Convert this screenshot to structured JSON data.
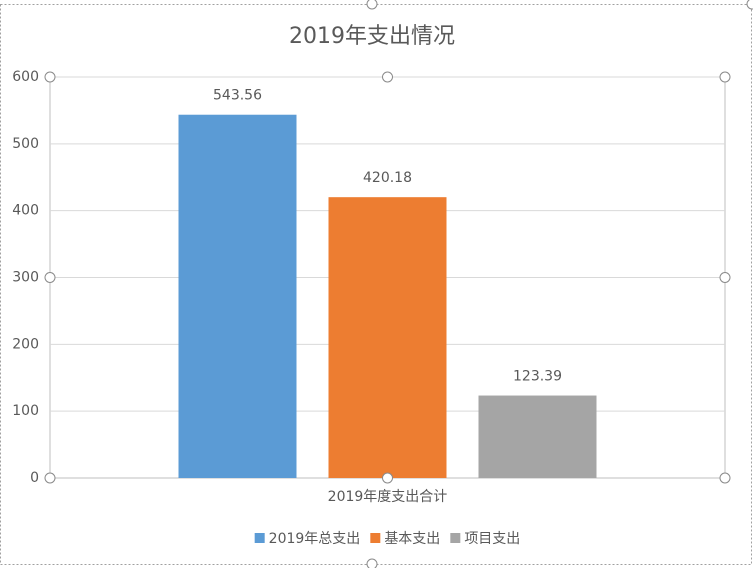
{
  "chart_data": {
    "type": "bar",
    "title": "2019年支出情况",
    "categories": [
      "2019年度支出合计"
    ],
    "series": [
      {
        "name": "2019年总支出",
        "color": "#5b9bd5",
        "values": [
          543.56
        ]
      },
      {
        "name": "基本支出",
        "color": "#ed7d31",
        "values": [
          420.18
        ]
      },
      {
        "name": "项目支出",
        "color": "#a5a5a5",
        "values": [
          123.39
        ]
      }
    ],
    "ylim": [
      0,
      600
    ],
    "yticks": [
      0,
      100,
      200,
      300,
      400,
      500,
      600
    ],
    "grid": true,
    "legend": "bottom"
  }
}
